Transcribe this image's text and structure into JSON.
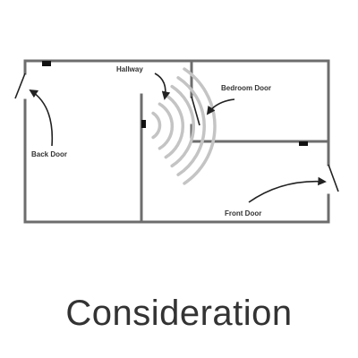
{
  "diagram": {
    "labels": {
      "hallway": "Hallway",
      "bedroom_door": "Bedroom Door",
      "back_door": "Back Door",
      "front_door": "Front Door"
    },
    "colors": {
      "wall": "#6d6d6d",
      "arrow": "#222222",
      "signal": "#c4c4c4",
      "sensor": "#111111"
    }
  },
  "caption": "Consideration"
}
